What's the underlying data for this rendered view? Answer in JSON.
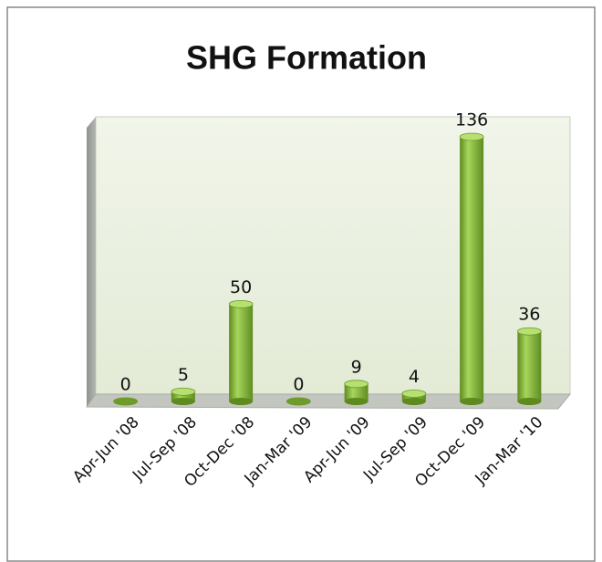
{
  "chart_data": {
    "type": "bar3d",
    "title": "SHG Formation",
    "categories": [
      "Apr-Jun '08",
      "Jul-Sep '08",
      "Oct-Dec '08",
      "Jan-Mar '09",
      "Apr-Jun '09",
      "Jul-Sep '09",
      "Oct-Dec '09",
      "Jan-Mar '10"
    ],
    "values": [
      0,
      5,
      50,
      0,
      9,
      4,
      136,
      36
    ],
    "color": "#8cbf3f"
  }
}
